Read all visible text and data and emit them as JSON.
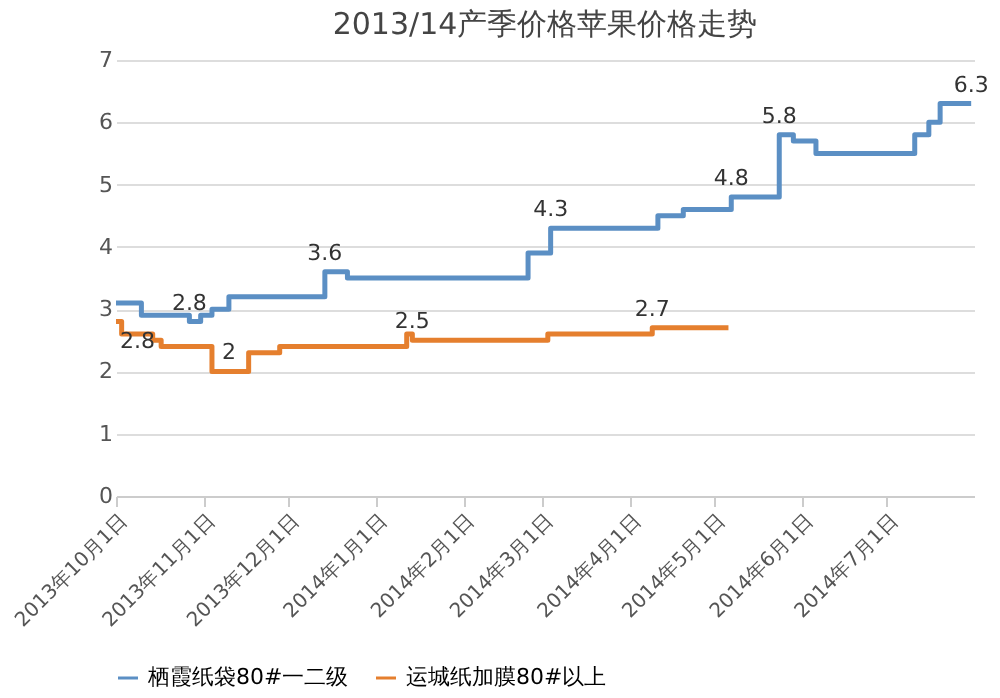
{
  "chart_data": {
    "type": "step",
    "title": "2013/14产季价格苹果价格走势",
    "xlim": [
      "2013-10-01",
      "2014-08-01"
    ],
    "xticks": [
      {
        "value": "2013-10-01",
        "label": "2013年10月1日"
      },
      {
        "value": "2013-11-01",
        "label": "2013年11月1日"
      },
      {
        "value": "2013-12-01",
        "label": "2013年12月1日"
      },
      {
        "value": "2014-01-01",
        "label": "2014年1月1日"
      },
      {
        "value": "2014-02-01",
        "label": "2014年2月1日"
      },
      {
        "value": "2014-03-01",
        "label": "2014年3月1日"
      },
      {
        "value": "2014-04-01",
        "label": "2014年4月1日"
      },
      {
        "value": "2014-05-01",
        "label": "2014年5月1日"
      },
      {
        "value": "2014-06-01",
        "label": "2014年6月1日"
      },
      {
        "value": "2014-07-01",
        "label": "2014年7月1日"
      }
    ],
    "ylim": [
      0,
      7
    ],
    "yticks": [
      0,
      1,
      2,
      3,
      4,
      5,
      6,
      7
    ],
    "grid": "y",
    "legend": "bottom",
    "line_style": "solid",
    "series": [
      {
        "name": "栖霞纸袋80#一二级",
        "color": "#5b8fc4",
        "x": [
          "2013-10-01",
          "2013-10-10",
          "2013-10-27",
          "2013-10-31",
          "2013-11-04",
          "2013-11-10",
          "2013-12-14",
          "2013-12-22",
          "2014-02-24",
          "2014-03-04",
          "2014-04-11",
          "2014-04-20",
          "2014-05-07",
          "2014-05-24",
          "2014-05-29",
          "2014-06-06",
          "2014-07-11",
          "2014-07-16",
          "2014-07-20",
          "2014-07-31"
        ],
        "values": [
          3.1,
          2.9,
          2.8,
          2.9,
          3.0,
          3.2,
          3.6,
          3.5,
          3.9,
          4.3,
          4.5,
          4.6,
          4.8,
          5.8,
          5.7,
          5.5,
          5.8,
          6.0,
          6.3,
          6.3
        ]
      },
      {
        "name": "运城纸加膜80#以上",
        "color": "#e57f2e",
        "x": [
          "2013-10-01",
          "2013-10-03",
          "2013-10-14",
          "2013-10-17",
          "2013-11-04",
          "2013-11-17",
          "2013-11-28",
          "2014-01-12",
          "2014-01-14",
          "2014-03-03",
          "2014-04-09",
          "2014-05-06"
        ],
        "values": [
          2.8,
          2.6,
          2.5,
          2.4,
          2.0,
          2.3,
          2.4,
          2.6,
          2.5,
          2.6,
          2.7,
          2.7
        ]
      }
    ],
    "annotations": [
      {
        "text": "2.8",
        "x": "2013-10-01",
        "y": 2.8
      },
      {
        "text": "2.8",
        "x": "2013-10-27",
        "y": 2.8
      },
      {
        "text": "2",
        "x": "2013-11-10",
        "y": 2.0
      },
      {
        "text": "3.6",
        "x": "2013-12-14",
        "y": 3.6
      },
      {
        "text": "2.5",
        "x": "2014-01-14",
        "y": 2.5
      },
      {
        "text": "4.3",
        "x": "2014-03-04",
        "y": 4.3
      },
      {
        "text": "2.7",
        "x": "2014-04-09",
        "y": 2.7
      },
      {
        "text": "5.8",
        "x": "2014-05-24",
        "y": 5.8
      },
      {
        "text": "4.8",
        "x": "2014-05-07",
        "y": 4.8
      },
      {
        "text": "6.3",
        "x": "2014-07-31",
        "y": 6.3
      }
    ]
  }
}
